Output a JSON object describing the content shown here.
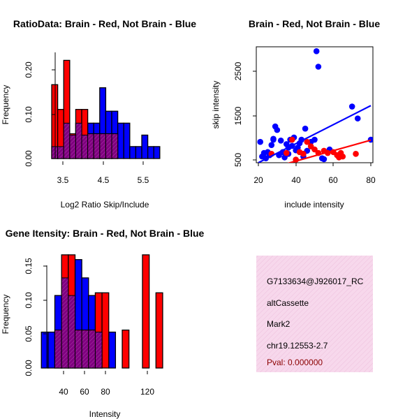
{
  "chart_data": [
    {
      "type": "bar",
      "title": "RatioData: Brain - Red, Not Brain - Blue",
      "xlabel": "Log2 Ratio Skip/Include",
      "ylabel": "Frequency",
      "xlim": [
        3.0,
        6.0
      ],
      "ylim": [
        0,
        0.24
      ],
      "xticks": [
        "3.5",
        "4.5",
        "5.5"
      ],
      "xtick_values": [
        3.5,
        4.5,
        5.5
      ],
      "yticks": [
        "0.00",
        "0.10",
        "0.20"
      ],
      "ytick_values": [
        0.0,
        0.1,
        0.2
      ],
      "series": [
        {
          "name": "Not Brain",
          "color": "#0000ff",
          "bin_starts": [
            3.14,
            3.29,
            3.44,
            3.59,
            3.74,
            3.89,
            4.04,
            4.19,
            4.34,
            4.49,
            4.64,
            4.79,
            4.94,
            5.09,
            5.24,
            5.39,
            5.54,
            5.69
          ],
          "width": 0.15,
          "values": [
            0.027,
            0.027,
            0.08,
            0.053,
            0.08,
            0.053,
            0.08,
            0.08,
            0.16,
            0.107,
            0.107,
            0.08,
            0.08,
            0.027,
            0.027,
            0.053,
            0.027,
            0.027
          ]
        },
        {
          "name": "Brain",
          "color": "#ff0000",
          "bin_starts": [
            3.14,
            3.29,
            3.44,
            3.59,
            3.74,
            3.89,
            4.04,
            4.19,
            4.34,
            4.49,
            4.64,
            4.79,
            4.94,
            5.09,
            5.24,
            5.39,
            5.54,
            5.69
          ],
          "width": 0.15,
          "values": [
            0.167,
            0.111,
            0.222,
            0.056,
            0.111,
            0.111,
            0.056,
            0.056,
            0.056,
            0.056,
            0.056,
            0,
            0,
            0,
            0,
            0,
            0,
            0
          ]
        }
      ]
    },
    {
      "type": "scatter",
      "title": "Brain - Red, Not Brain - Blue",
      "xlabel": "include intensity",
      "ylabel": "skip intensity",
      "xlim": [
        20,
        80
      ],
      "ylim": [
        480,
        3100
      ],
      "xticks": [
        "20",
        "40",
        "60",
        "80"
      ],
      "xtick_values": [
        20,
        40,
        60,
        80
      ],
      "yticks": [
        "500",
        "1500",
        "2500"
      ],
      "ytick_values": [
        500,
        1500,
        2500
      ],
      "series": [
        {
          "name": "Not Brain",
          "color": "#0000ff",
          "x": [
            21,
            22,
            23,
            24,
            25,
            26,
            27,
            28,
            29,
            30,
            31,
            32,
            33,
            34,
            35,
            36,
            37,
            38,
            39,
            40,
            41,
            42,
            43,
            44,
            45,
            46,
            48,
            50,
            51,
            52,
            54,
            58,
            70,
            73,
            80,
            28,
            36,
            44,
            55
          ],
          "y": [
            950,
            620,
            700,
            580,
            720,
            650,
            880,
            1020,
            1300,
            1220,
            650,
            980,
            720,
            600,
            900,
            680,
            1000,
            860,
            1050,
            760,
            820,
            920,
            1000,
            680,
            1250,
            750,
            950,
            1000,
            3000,
            2650,
            580,
            780,
            1750,
            1480,
            1000,
            1000,
            820,
            620,
            560
          ],
          "trend": [
            [
              20,
              480
            ],
            [
              80,
              1770
            ]
          ]
        },
        {
          "name": "Brain",
          "color": "#ff0000",
          "x": [
            27,
            35,
            38,
            40,
            42,
            44,
            46,
            48,
            50,
            52,
            55,
            57,
            60,
            62,
            63,
            64,
            65,
            72
          ],
          "y": [
            680,
            700,
            1000,
            550,
            720,
            680,
            950,
            850,
            780,
            700,
            750,
            700,
            720,
            650,
            600,
            700,
            620,
            680
          ],
          "trend": [
            [
              20,
              280
            ],
            [
              80,
              990
            ]
          ]
        }
      ]
    },
    {
      "type": "bar",
      "title": "Gene Itensity: Brain - Red, Not Brain - Blue",
      "xlabel": "Intensity",
      "ylabel": "Frequency",
      "xlim": [
        20,
        135
      ],
      "ylim": [
        0,
        0.17
      ],
      "xticks": [
        "40",
        "60",
        "80",
        "120"
      ],
      "xtick_values": [
        40,
        60,
        80,
        120
      ],
      "yticks": [
        "0.00",
        "0.05",
        "0.10",
        "0.15"
      ],
      "ytick_values": [
        0,
        0.05,
        0.1,
        0.15
      ],
      "series": [
        {
          "name": "Not Brain",
          "color": "#0000ff",
          "bin_starts": [
            22,
            28,
            34,
            40,
            46,
            52,
            58,
            64,
            70,
            76,
            82,
            88,
            94,
            100,
            106,
            112,
            118,
            124
          ],
          "width": 6,
          "values": [
            0.053,
            0.053,
            0.107,
            0.133,
            0.107,
            0.16,
            0.133,
            0.107,
            0.053,
            0,
            0.053,
            0,
            0,
            0,
            0,
            0,
            0,
            0
          ]
        },
        {
          "name": "Brain",
          "color": "#ff0000",
          "bin_starts": [
            22,
            28,
            34,
            40,
            46,
            52,
            58,
            64,
            70,
            76,
            82,
            88,
            94,
            100,
            106,
            112,
            118,
            124
          ],
          "width": 6,
          "values": [
            0,
            0,
            0.056,
            0.167,
            0.167,
            0.056,
            0.056,
            0.056,
            0.111,
            0.111,
            0,
            0,
            0.056,
            0,
            0,
            0.167,
            0,
            0.111
          ]
        }
      ]
    }
  ],
  "info_panel": {
    "lines": [
      "G7133634@J926017_RC",
      "altCassette",
      "Mark2",
      "chr19.12553-2.7"
    ],
    "pval": "Pval: 0.000000",
    "pval_color": "#8b0000",
    "bg_color": "#f7d8ec"
  }
}
